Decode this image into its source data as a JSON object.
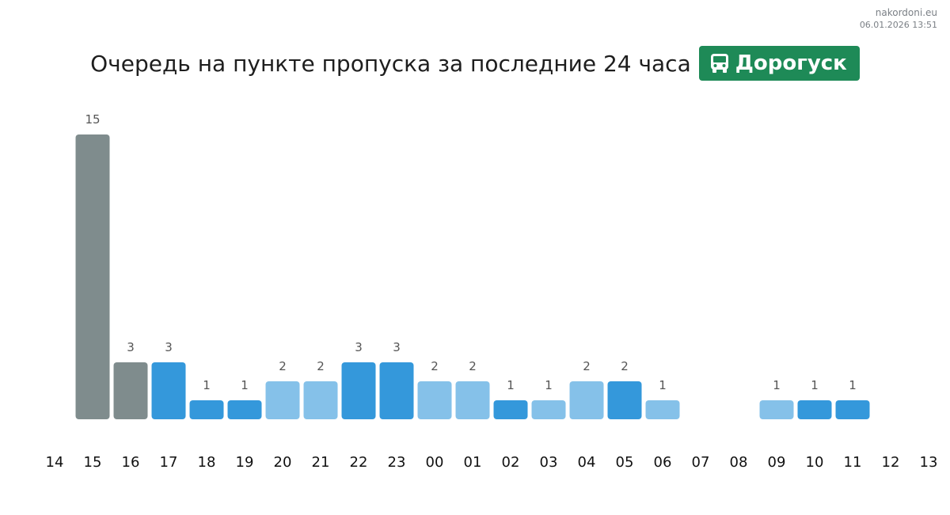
{
  "header": {
    "site": "nakordoni.eu",
    "timestamp": "06.01.2026 13:51",
    "title": "Очередь на пункте пропуска за последние 24 часа",
    "badge_label": "Дорогуск",
    "badge_icon": "bus-icon"
  },
  "colors": {
    "past": "#7f8c8d",
    "dark": "#3498db",
    "light": "#85c1e9",
    "label": "#555555",
    "tick": "#111111",
    "badge": "#1e8a57"
  },
  "chart_data": {
    "type": "bar",
    "title": "Очередь на пункте пропуска за последние 24 часа",
    "xlabel": "",
    "ylabel": "",
    "ylim": [
      0,
      15
    ],
    "grid": false,
    "categories": [
      "14",
      "15",
      "16",
      "17",
      "18",
      "19",
      "20",
      "21",
      "22",
      "23",
      "00",
      "01",
      "02",
      "03",
      "04",
      "05",
      "06",
      "07",
      "08",
      "09",
      "10",
      "11",
      "12",
      "13"
    ],
    "values": [
      null,
      15,
      3,
      3,
      1,
      1,
      2,
      2,
      3,
      3,
      2,
      2,
      1,
      1,
      2,
      2,
      1,
      null,
      null,
      1,
      1,
      1,
      null,
      null
    ],
    "bar_colors": [
      "",
      "past",
      "past",
      "dark",
      "dark",
      "dark",
      "light",
      "light",
      "dark",
      "dark",
      "light",
      "light",
      "dark",
      "light",
      "light",
      "dark",
      "light",
      "",
      "",
      "light",
      "dark",
      "dark",
      "",
      ""
    ]
  }
}
